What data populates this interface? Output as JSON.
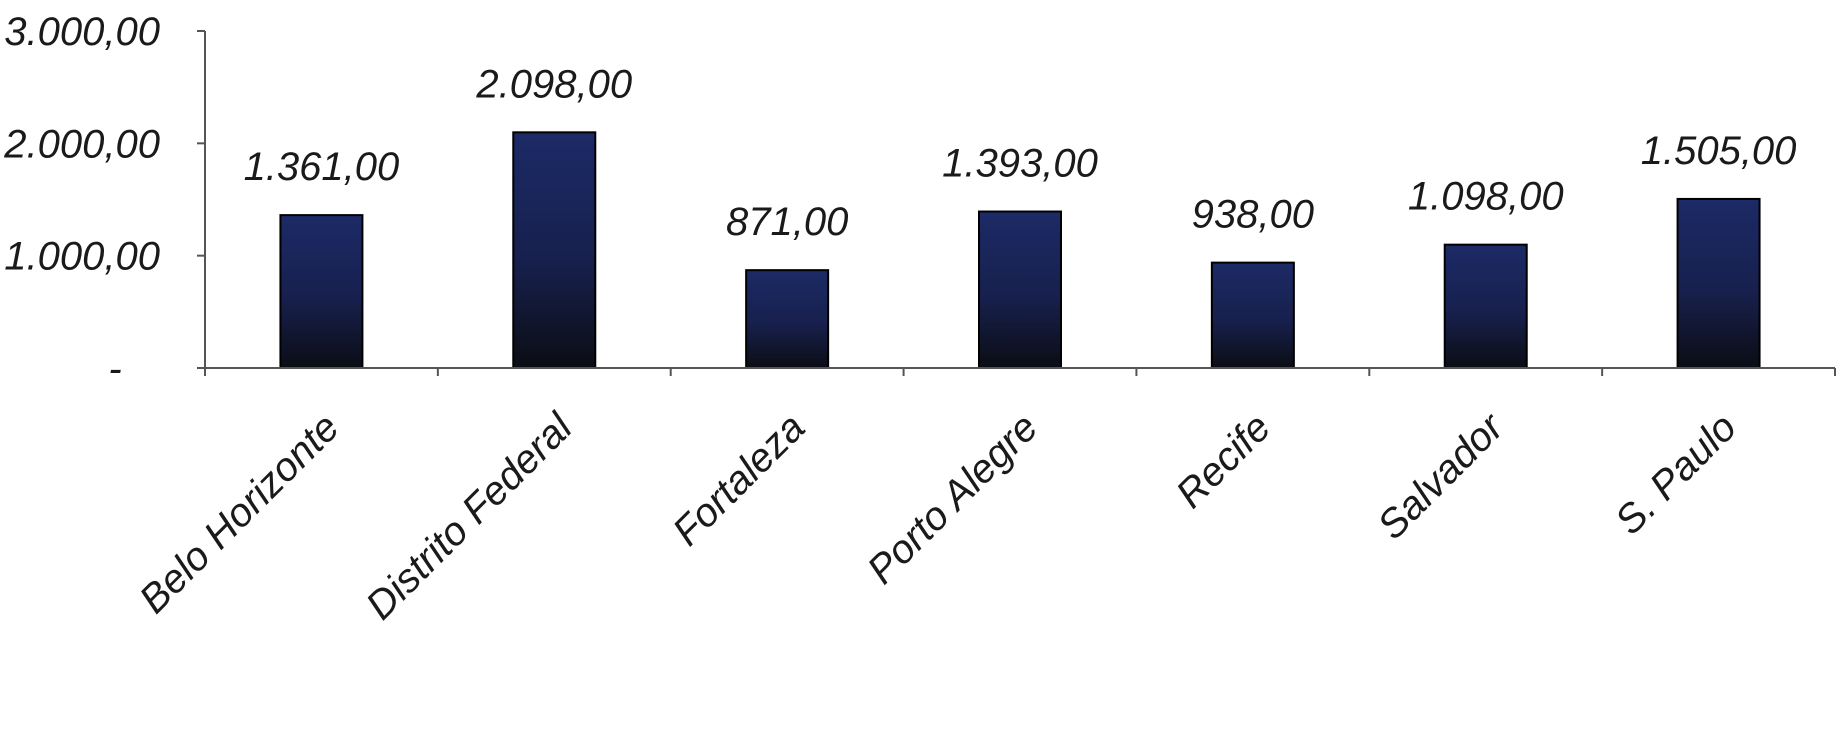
{
  "chart_data": {
    "type": "bar",
    "categories": [
      "Belo Horizonte",
      "Distrito Federal",
      "Fortaleza",
      "Porto Alegre",
      "Recife",
      "Salvador",
      "S. Paulo"
    ],
    "values": [
      1361,
      2098,
      871,
      1393,
      938,
      1098,
      1505
    ],
    "value_labels": [
      "1.361,00",
      "2.098,00",
      "871,00",
      "1.393,00",
      "938,00",
      "1.098,00",
      "1.505,00"
    ],
    "yticks": [
      {
        "value": 0,
        "label": "-"
      },
      {
        "value": 1000,
        "label": "1.000,00"
      },
      {
        "value": 2000,
        "label": "2.000,00"
      },
      {
        "value": 3000,
        "label": "3.000,00"
      }
    ],
    "ylim": [
      0,
      3000
    ],
    "grid": false,
    "legend": "none",
    "bar_color_top": "#1c2a66",
    "bar_color_bottom": "#0b0d14"
  }
}
